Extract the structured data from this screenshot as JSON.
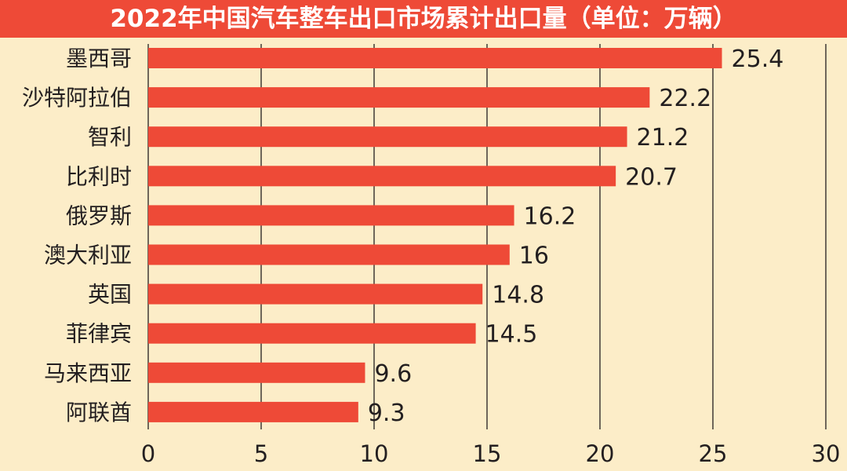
{
  "chart_data": {
    "type": "bar",
    "orientation": "horizontal",
    "title": "2022年中国汽车整车出口市场累计出口量（单位：万辆）",
    "categories": [
      "墨西哥",
      "沙特阿拉伯",
      "智利",
      "比利时",
      "俄罗斯",
      "澳大利亚",
      "英国",
      "菲律宾",
      "马来西亚",
      "阿联酋"
    ],
    "values": [
      25.4,
      22.2,
      21.2,
      20.7,
      16.2,
      16,
      14.8,
      14.5,
      9.6,
      9.3
    ],
    "value_labels": [
      "25.4",
      "22.2",
      "21.2",
      "20.7",
      "16.2",
      "16",
      "14.8",
      "14.5",
      "9.6",
      "9.3"
    ],
    "xticks": [
      0,
      5,
      10,
      15,
      20,
      25,
      30
    ],
    "xtick_labels": [
      "0",
      "5",
      "10",
      "15",
      "20",
      "25",
      "30"
    ],
    "xlim": [
      0,
      30
    ],
    "grid": "vertical",
    "legend": "none",
    "xlabel": "",
    "ylabel": ""
  },
  "colors": {
    "background": "#fcedc8",
    "title_bar": "#ee4a37",
    "title_text": "#ffffff",
    "bar": "#ee4a37",
    "text": "#231f20",
    "grid": "#231f20"
  }
}
